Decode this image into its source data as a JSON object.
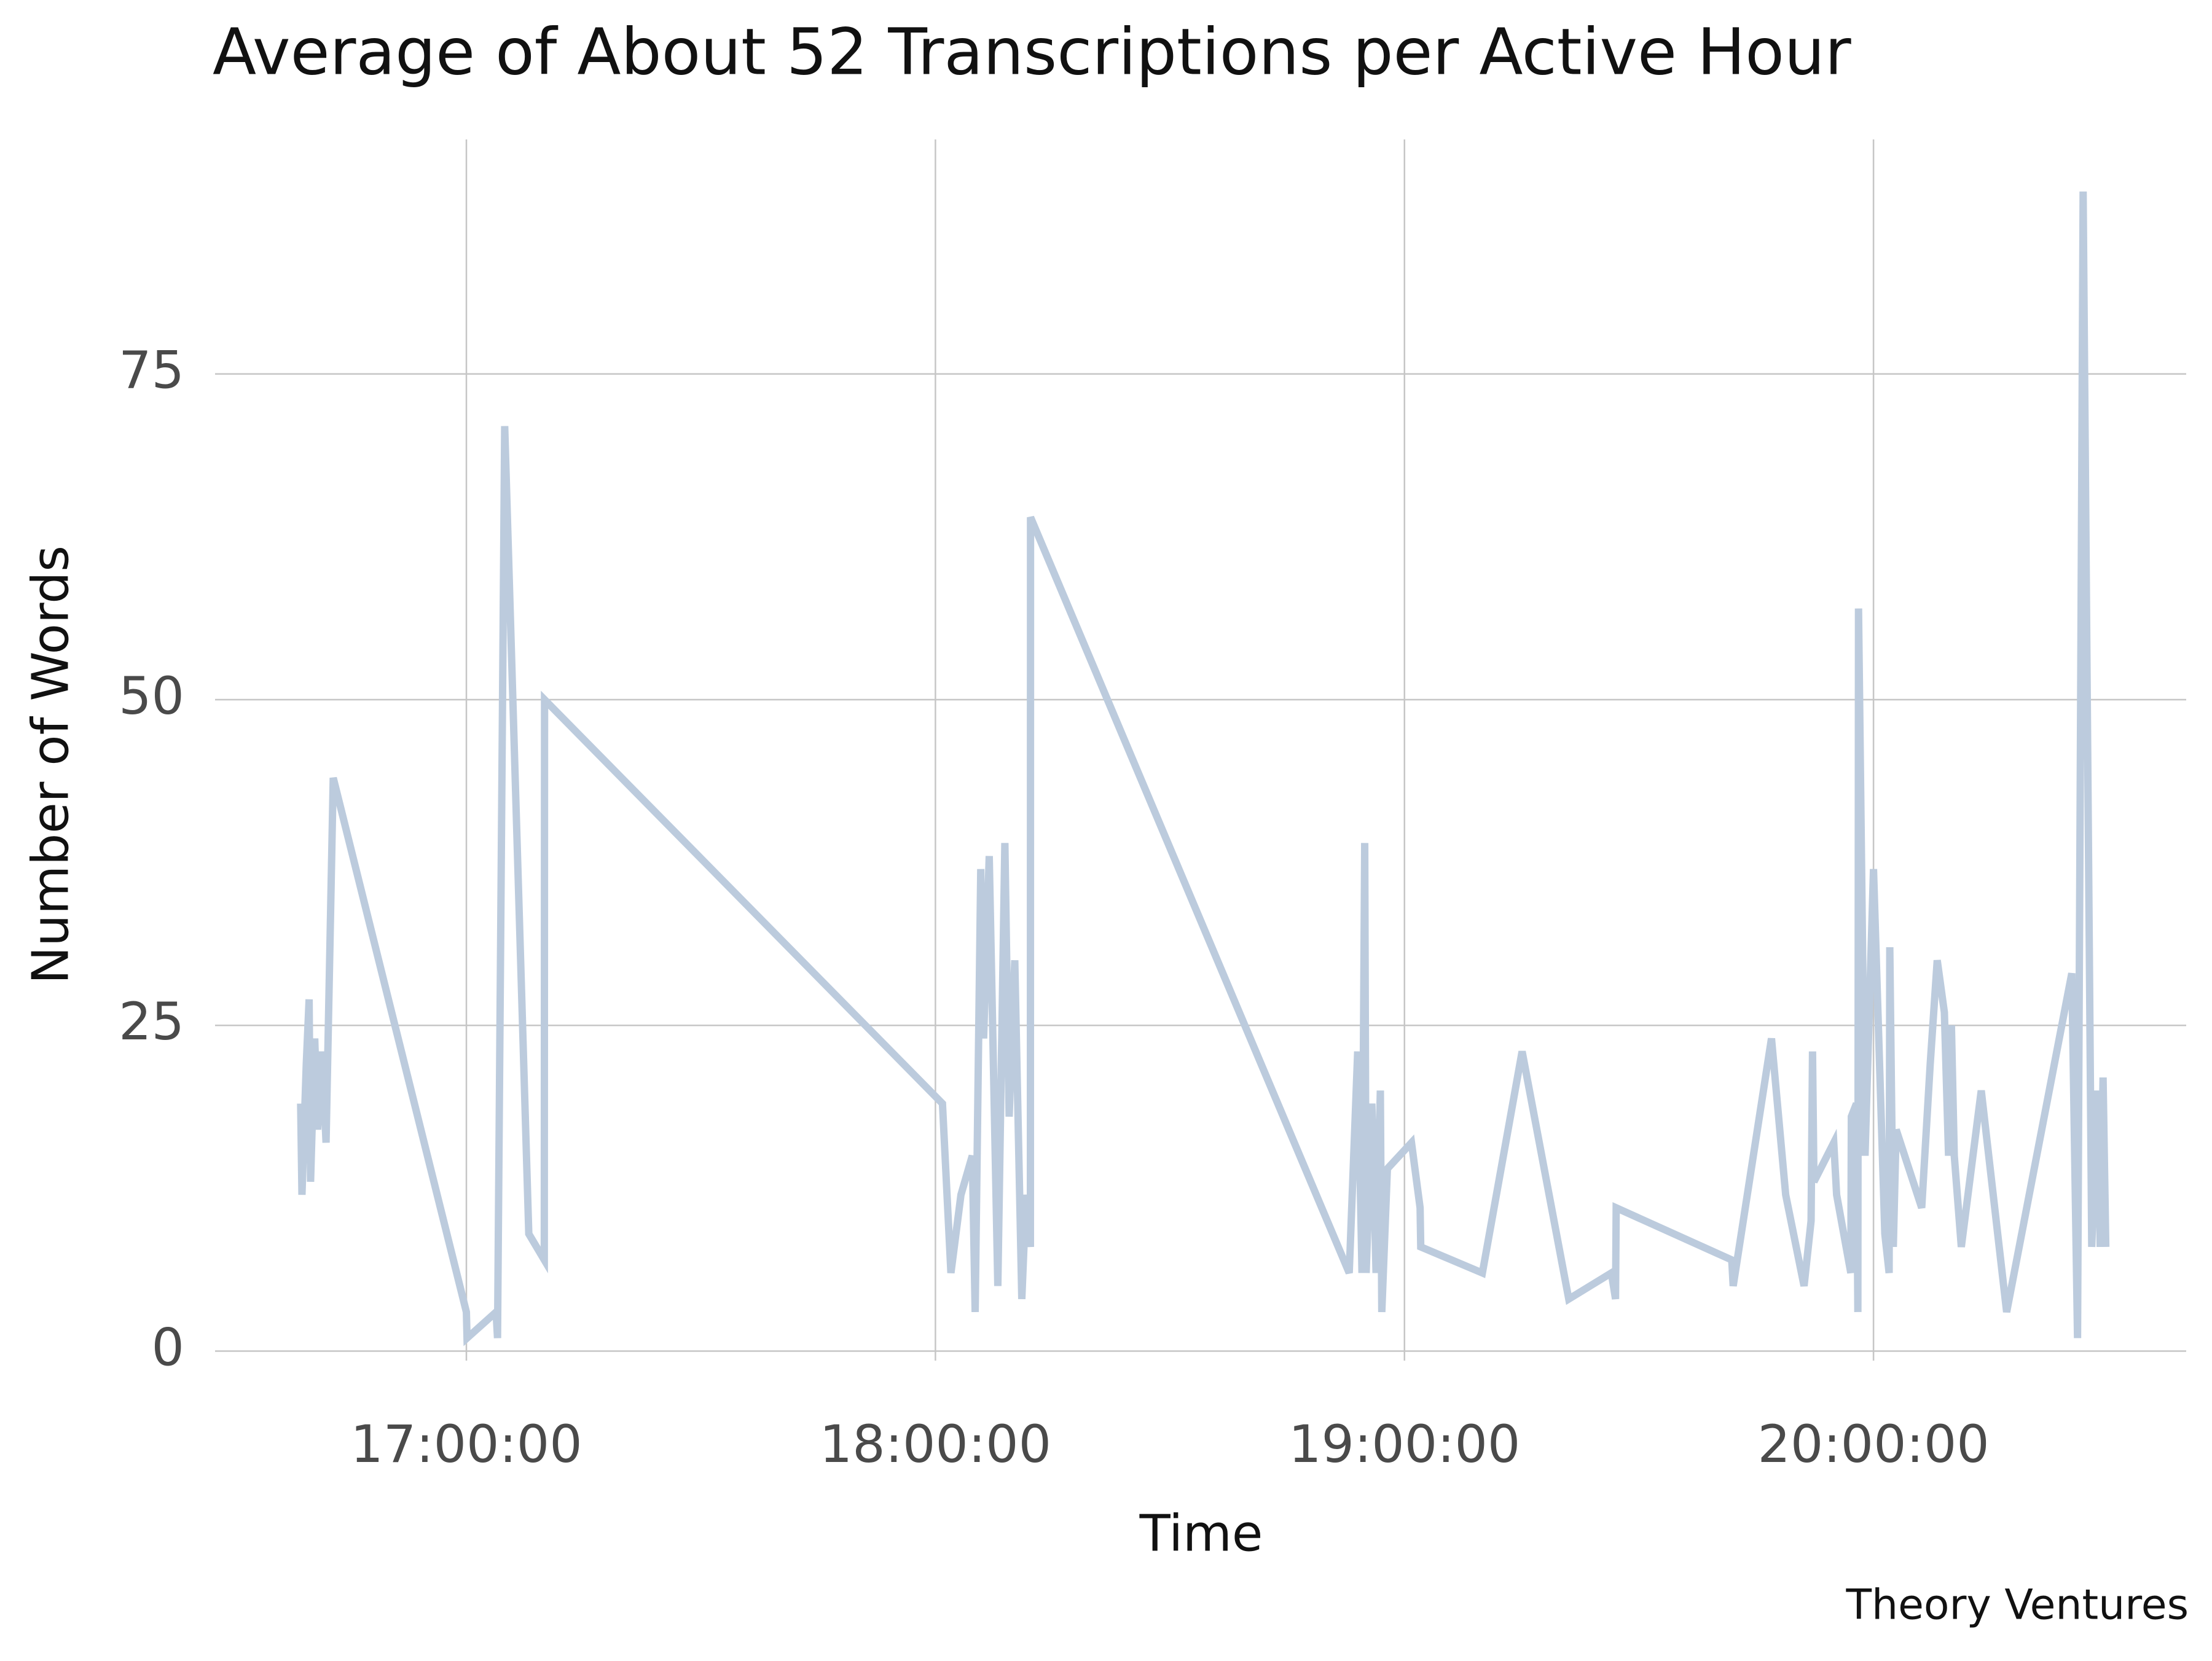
{
  "chart_data": {
    "type": "line",
    "title": "Average of About 52 Transcriptions per Active Hour",
    "x_label": "Time",
    "y_label": "Number of Words",
    "footer": "Theory Ventures",
    "color": "#bccbdd",
    "grid": true,
    "x": [
      "16:38:48",
      "16:38:58",
      "16:39:31",
      "16:39:53",
      "16:40:04",
      "16:40:36",
      "16:40:58",
      "16:41:31",
      "16:42:03",
      "16:42:58",
      "17:00:00",
      "17:00:05",
      "17:03:48",
      "17:03:59",
      "17:04:54",
      "17:07:59",
      "17:09:58",
      "17:10:00",
      "18:00:54",
      "18:01:59",
      "18:03:16",
      "18:04:43",
      "18:05:05",
      "18:05:48",
      "18:06:10",
      "18:06:53",
      "18:07:59",
      "18:08:53",
      "18:09:26",
      "18:10:09",
      "18:11:03",
      "18:11:36",
      "18:12:09",
      "18:12:10",
      "18:52:56",
      "18:54:01",
      "18:54:34",
      "18:54:55",
      "18:55:06",
      "18:55:50",
      "18:56:22",
      "18:56:55",
      "18:57:06",
      "18:57:49",
      "19:00:54",
      "19:02:00",
      "19:02:05",
      "19:09:58",
      "19:15:03",
      "19:21:01",
      "19:26:28",
      "19:27:00",
      "19:27:05",
      "19:41:52",
      "19:42:03",
      "19:46:57",
      "19:48:46",
      "19:51:07",
      "19:52:01",
      "19:52:12",
      "19:52:23",
      "19:54:55",
      "19:55:17",
      "19:57:06",
      "19:57:10",
      "19:57:49",
      "19:58:00",
      "19:58:05",
      "19:58:55",
      "20:00:00",
      "20:01:27",
      "20:02:00",
      "20:02:05",
      "20:02:32",
      "20:02:54",
      "20:06:10",
      "20:07:15",
      "20:08:09",
      "20:09:04",
      "20:09:36",
      "20:09:58",
      "20:10:20",
      "20:11:14",
      "20:13:47",
      "20:17:02",
      "20:25:22",
      "20:26:06",
      "20:26:49",
      "20:27:55",
      "20:28:38",
      "20:29:00",
      "20:29:22",
      "20:29:43"
    ],
    "values": [
      19,
      12,
      22,
      27,
      13,
      24,
      17,
      23,
      16,
      44,
      3,
      1,
      3,
      1,
      71,
      9,
      7,
      50,
      19,
      6,
      12,
      15,
      3,
      37,
      24,
      38,
      5,
      39,
      18,
      30,
      4,
      12,
      8,
      64,
      6,
      23,
      6,
      39,
      6,
      19,
      6,
      20,
      3,
      14,
      16,
      11,
      8,
      6,
      23,
      4,
      6,
      4,
      11,
      7,
      5,
      24,
      12,
      5,
      10,
      23,
      13,
      16,
      12,
      6,
      18,
      19,
      3,
      57,
      15,
      37,
      9,
      6,
      31,
      8,
      17,
      11,
      22,
      30,
      26,
      15,
      25,
      15,
      8,
      20,
      3,
      29,
      1,
      89,
      8,
      20,
      8,
      21,
      8
    ],
    "xlim": [
      "16:27:51",
      "20:40:00"
    ],
    "xticks": [
      "17:00:00",
      "18:00:00",
      "19:00:00",
      "20:00:00"
    ],
    "ylim": [
      -4.5,
      93
    ],
    "yticks": [
      0,
      25,
      50,
      75
    ]
  }
}
